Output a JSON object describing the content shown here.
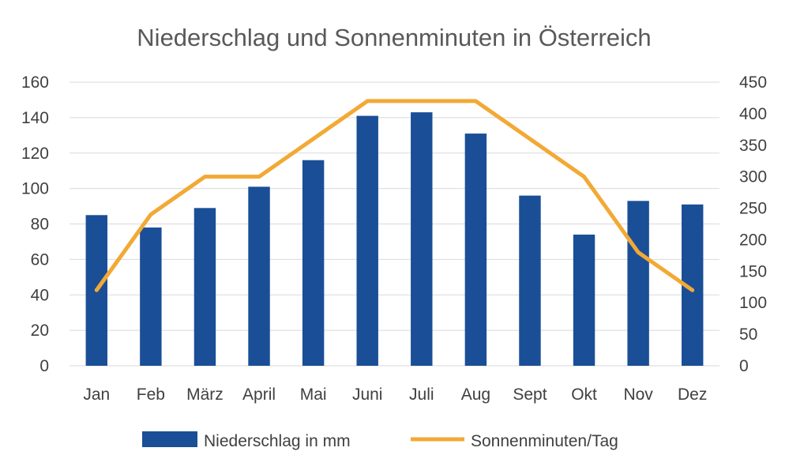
{
  "chart_data": {
    "type": "bar",
    "title": "Niederschlag und Sonnenminuten in Österreich",
    "categories": [
      "Jan",
      "Feb",
      "März",
      "April",
      "Mai",
      "Juni",
      "Juli",
      "Aug",
      "Sept",
      "Okt",
      "Nov",
      "Dez"
    ],
    "series": [
      {
        "name": "Niederschlag in mm",
        "type": "bar",
        "axis": "left",
        "values": [
          85,
          78,
          89,
          101,
          116,
          141,
          143,
          131,
          96,
          74,
          93,
          91
        ]
      },
      {
        "name": "Sonnenminuten/Tag",
        "type": "line",
        "axis": "right",
        "values": [
          120,
          240,
          300,
          300,
          360,
          420,
          420,
          420,
          360,
          300,
          180,
          120
        ]
      }
    ],
    "y_left": {
      "min": 0,
      "max": 160,
      "step": 20
    },
    "y_right": {
      "min": 0,
      "max": 450,
      "step": 50
    },
    "grid": true,
    "legend_position": "bottom",
    "colors": {
      "bar": "#1a4f97",
      "line": "#f2a935"
    }
  }
}
